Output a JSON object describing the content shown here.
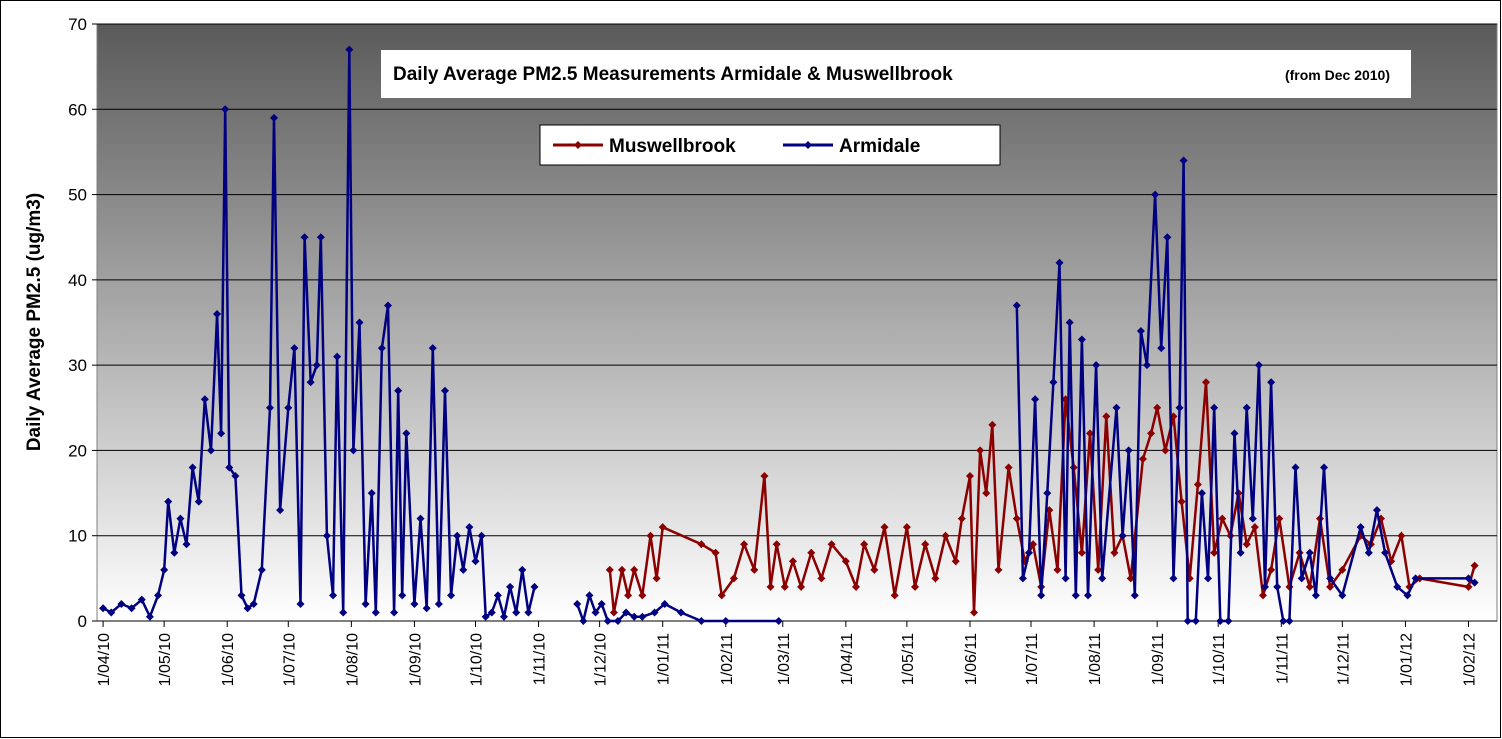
{
  "chart_data": {
    "type": "line",
    "title": "Daily Average PM2.5 Measurements Armidale & Muswellbrook",
    "subtitle": "(from Dec 2010)",
    "y_label": "Daily Average PM2.5 (ug/m3)",
    "ylim": [
      0,
      70
    ],
    "yticks": [
      0,
      10,
      20,
      30,
      40,
      50,
      60,
      70
    ],
    "grid": true,
    "xlim": [
      "29/03/10",
      "15/02/12"
    ],
    "xticks": [
      "1/04/10",
      "1/05/10",
      "1/06/10",
      "1/07/10",
      "1/08/10",
      "1/09/10",
      "1/10/10",
      "1/11/10",
      "1/12/10",
      "1/01/11",
      "1/02/11",
      "1/03/11",
      "1/04/11",
      "1/05/11",
      "1/06/11",
      "1/07/11",
      "1/08/11",
      "1/09/11",
      "1/10/11",
      "1/11/11",
      "1/12/11",
      "1/01/12",
      "1/02/12"
    ],
    "legend": "top",
    "series": [
      {
        "name": "Muswellbrook",
        "color": "#8b0000",
        "x": [
          "6/12/10",
          "8/12/10",
          "12/12/10",
          "15/12/10",
          "18/12/10",
          "22/12/10",
          "26/12/10",
          "29/12/10",
          "1/01/11",
          "20/01/11",
          "27/01/11",
          "30/01/11",
          "5/02/11",
          "10/02/11",
          "15/02/11",
          "20/02/11",
          "23/02/11",
          "26/02/11",
          "2/03/11",
          "6/03/11",
          "10/03/11",
          "15/03/11",
          "20/03/11",
          "25/03/11",
          "1/04/11",
          "6/04/11",
          "10/04/11",
          "15/04/11",
          "20/04/11",
          "25/04/11",
          "1/05/11",
          "5/05/11",
          "10/05/11",
          "15/05/11",
          "20/05/11",
          "25/05/11",
          "28/05/11",
          "1/06/11",
          "3/06/11",
          "6/06/11",
          "9/06/11",
          "12/06/11",
          "15/06/11",
          "20/06/11",
          "24/06/11",
          "28/06/11",
          "2/07/11",
          "6/07/11",
          "10/07/11",
          "14/07/11",
          "18/07/11",
          "22/07/11",
          "26/07/11",
          "30/07/11",
          "3/08/11",
          "7/08/11",
          "11/08/11",
          "15/08/11",
          "19/08/11",
          "25/08/11",
          "29/08/11",
          "1/09/11",
          "5/09/11",
          "9/09/11",
          "13/09/11",
          "17/09/11",
          "21/09/11",
          "25/09/11",
          "29/09/11",
          "3/10/11",
          "7/10/11",
          "11/10/11",
          "15/10/11",
          "19/10/11",
          "23/10/11",
          "27/10/11",
          "31/10/11",
          "5/11/11",
          "10/11/11",
          "15/11/11",
          "20/11/11",
          "25/11/11",
          "1/12/11",
          "10/12/11",
          "15/12/11",
          "20/12/11",
          "25/12/11",
          "30/12/11",
          "3/01/12",
          "8/01/12",
          "1/02/12",
          "4/02/12"
        ],
        "values": [
          6,
          1,
          6,
          3,
          6,
          3,
          10,
          5,
          11,
          9,
          8,
          3,
          5,
          9,
          6,
          17,
          4,
          9,
          4,
          7,
          4,
          8,
          5,
          9,
          7,
          4,
          9,
          6,
          11,
          3,
          11,
          4,
          9,
          5,
          10,
          7,
          12,
          17,
          1,
          20,
          15,
          23,
          6,
          18,
          12,
          7,
          9,
          4,
          13,
          6,
          26,
          18,
          8,
          22,
          6,
          24,
          8,
          10,
          5,
          19,
          22,
          25,
          20,
          24,
          14,
          5,
          16,
          28,
          8,
          12,
          10,
          15,
          9,
          11,
          3,
          6,
          12,
          4,
          8,
          4,
          12,
          4,
          6,
          10,
          9,
          12,
          7,
          10,
          4,
          5,
          4,
          6.5
        ]
      },
      {
        "name": "Armidale",
        "color": "#000080",
        "x": [
          "1/04/10",
          "5/04/10",
          "10/04/10",
          "15/04/10",
          "20/04/10",
          "24/04/10",
          "28/04/10",
          "1/05/10",
          "3/05/10",
          "6/05/10",
          "9/05/10",
          "12/05/10",
          "15/05/10",
          "18/05/10",
          "21/05/10",
          "24/05/10",
          "27/05/10",
          "29/05/10",
          "31/05/10",
          "2/06/10",
          "5/06/10",
          "8/06/10",
          "11/06/10",
          "14/06/10",
          "18/06/10",
          "22/06/10",
          "24/06/10",
          "27/06/10",
          "1/07/10",
          "4/07/10",
          "7/07/10",
          "9/07/10",
          "12/07/10",
          "15/07/10",
          "17/07/10",
          "20/07/10",
          "23/07/10",
          "25/07/10",
          "28/07/10",
          "31/07/10",
          "2/08/10",
          "5/08/10",
          "8/08/10",
          "11/08/10",
          "13/08/10",
          "16/08/10",
          "19/08/10",
          "22/08/10",
          "24/08/10",
          "26/08/10",
          "28/08/10",
          "1/09/10",
          "4/09/10",
          "7/09/10",
          "10/09/10",
          "13/09/10",
          "16/09/10",
          "19/09/10",
          "22/09/10",
          "25/09/10",
          "28/09/10",
          "1/10/10",
          "4/10/10",
          "6/10/10",
          "9/10/10",
          "12/10/10",
          "15/10/10",
          "18/10/10",
          "21/10/10",
          "24/10/10",
          "27/10/10",
          "30/10/10",
          "10/11/10",
          "20/11/10",
          "23/11/10",
          "26/11/10",
          "29/11/10",
          "2/12/10",
          "5/12/10",
          "10/12/10",
          "14/12/10",
          "18/12/10",
          "22/12/10",
          "28/12/10",
          "2/01/11",
          "10/01/11",
          "20/01/11",
          "1/02/11",
          "27/02/11",
          "15/04/11",
          "24/06/11",
          "27/06/11",
          "30/06/11",
          "3/07/11",
          "6/07/11",
          "9/07/11",
          "12/07/11",
          "15/07/11",
          "18/07/11",
          "20/07/11",
          "23/07/11",
          "26/07/11",
          "29/07/11",
          "2/08/11",
          "5/08/11",
          "12/08/11",
          "15/08/11",
          "18/08/11",
          "21/08/11",
          "24/08/11",
          "27/08/11",
          "31/08/11",
          "3/09/11",
          "6/09/11",
          "9/09/11",
          "12/09/11",
          "14/09/11",
          "16/09/11",
          "20/09/11",
          "23/09/11",
          "26/09/11",
          "29/09/11",
          "2/10/11",
          "6/10/11",
          "9/10/11",
          "12/10/11",
          "15/10/11",
          "18/10/11",
          "21/10/11",
          "24/10/11",
          "27/10/11",
          "30/10/11",
          "2/11/11",
          "5/11/11",
          "8/11/11",
          "11/11/11",
          "15/11/11",
          "18/11/11",
          "22/11/11",
          "25/11/11",
          "1/12/11",
          "10/12/11",
          "14/12/11",
          "18/12/11",
          "22/12/11",
          "28/12/11",
          "2/01/12",
          "6/01/12",
          "1/02/12",
          "4/02/12"
        ],
        "values": [
          1.5,
          1,
          2,
          1.5,
          2.5,
          0.5,
          3,
          6,
          14,
          8,
          12,
          9,
          18,
          14,
          26,
          20,
          36,
          22,
          60,
          18,
          17,
          3,
          1.5,
          2,
          6,
          25,
          59,
          13,
          25,
          32,
          2,
          45,
          28,
          30,
          45,
          10,
          3,
          31,
          1,
          67,
          20,
          35,
          2,
          15,
          1,
          32,
          37,
          1,
          27,
          3,
          22,
          2,
          12,
          1.5,
          32,
          2,
          27,
          3,
          10,
          6,
          11,
          7,
          10,
          0.5,
          1,
          3,
          0.5,
          4,
          1,
          6,
          1,
          4,
          null,
          2,
          0,
          3,
          1,
          2,
          0,
          0,
          1,
          0.5,
          0.5,
          1,
          2,
          1,
          0,
          0,
          0,
          null,
          37,
          5,
          8,
          26,
          3,
          15,
          28,
          42,
          5,
          35,
          3,
          33,
          3,
          30,
          5,
          25,
          10,
          20,
          3,
          34,
          30,
          50,
          32,
          45,
          5,
          25,
          54,
          0,
          0,
          15,
          5,
          25,
          0,
          0,
          22,
          8,
          25,
          12,
          30,
          4,
          28,
          4,
          0,
          0,
          18,
          5,
          8,
          3,
          18,
          5,
          3,
          11,
          8,
          13,
          8,
          4,
          3,
          5,
          5,
          4.5
        ]
      }
    ]
  }
}
